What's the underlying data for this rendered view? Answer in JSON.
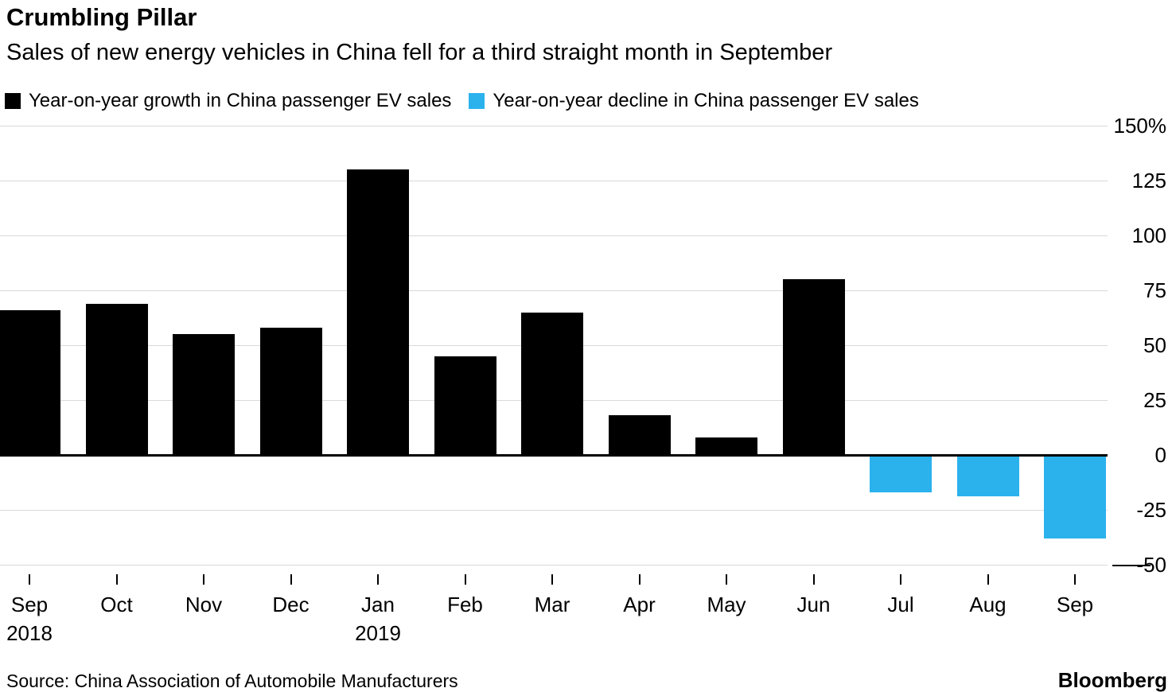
{
  "header": {
    "title": "Crumbling Pillar",
    "subtitle": "Sales of new energy vehicles in China fell for a third straight month in September"
  },
  "legend": [
    {
      "label": "Year-on-year growth in China passenger EV sales",
      "color": "#000000"
    },
    {
      "label": "Year-on-year decline in China passenger EV sales",
      "color": "#2BB2ED"
    }
  ],
  "chart_data": {
    "type": "bar",
    "categories": [
      "Sep",
      "Oct",
      "Nov",
      "Dec",
      "Jan",
      "Feb",
      "Mar",
      "Apr",
      "May",
      "Jun",
      "Jul",
      "Aug",
      "Sep"
    ],
    "category_year_labels": {
      "0": "2018",
      "4": "2019"
    },
    "values": [
      66,
      69,
      55,
      58,
      130,
      45,
      65,
      18,
      8,
      80,
      -17,
      -19,
      -38
    ],
    "positive_color": "#000000",
    "negative_color": "#2BB2ED",
    "title": "Crumbling Pillar",
    "xlabel": "",
    "ylabel": "",
    "ylim": [
      -50,
      150
    ],
    "yticks": [
      150,
      125,
      100,
      75,
      50,
      25,
      0,
      -25,
      -50
    ],
    "ytick_labels": [
      "150%",
      "125",
      "100",
      "75",
      "50",
      "25",
      "0",
      "-25",
      "-50"
    ],
    "grid": true,
    "legend_position": "top"
  },
  "footer": {
    "source": "Source: China Association of Automobile Manufacturers",
    "brand": "Bloomberg"
  }
}
